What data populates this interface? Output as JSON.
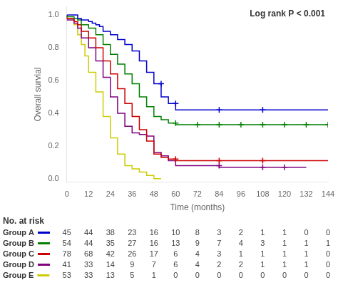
{
  "chart_data": {
    "type": "line",
    "line_style": "step",
    "annotation": "Log rank P < 0.001",
    "xlabel": "Time (months)",
    "ylabel": "Overall survial",
    "xlim": [
      0,
      144
    ],
    "ylim": [
      -0.02,
      1.05
    ],
    "xticks": [
      0,
      12,
      24,
      36,
      48,
      60,
      72,
      84,
      96,
      108,
      120,
      132,
      144
    ],
    "yticks": [
      {
        "value": 0.0,
        "label": "0.0"
      },
      0.2,
      0.4,
      0.6,
      0.8,
      {
        "value": 1.0,
        "label": "1.0"
      }
    ],
    "grid": false,
    "at_risk_label": "No. at risk",
    "at_risk_times": [
      0,
      12,
      24,
      36,
      48,
      60,
      72,
      84,
      96,
      108,
      120,
      132,
      144
    ],
    "series": [
      {
        "name": "Group A",
        "color": "#0000CC",
        "marker": "+",
        "x": [
          0,
          6,
          8,
          12,
          14,
          16,
          18,
          20,
          24,
          28,
          32,
          36,
          40,
          44,
          48,
          52,
          56,
          60,
          72,
          84,
          96,
          108,
          120,
          132,
          144
        ],
        "values": [
          1.0,
          1.0,
          0.98,
          0.97,
          0.96,
          0.95,
          0.94,
          0.93,
          0.9,
          0.88,
          0.85,
          0.82,
          0.78,
          0.72,
          0.65,
          0.58,
          0.5,
          0.46,
          0.42,
          0.42,
          0.42,
          0.42,
          0.42,
          0.42,
          0.42
        ],
        "censor_x": [
          52,
          60,
          84,
          108
        ],
        "censor_values": [
          0.58,
          0.46,
          0.42,
          0.42
        ],
        "at_risk": [
          45,
          44,
          38,
          23,
          16,
          10,
          8,
          3,
          2,
          1,
          1,
          0,
          0
        ]
      },
      {
        "name": "Group B",
        "color": "#008000",
        "marker": "+",
        "x": [
          0,
          4,
          6,
          8,
          12,
          16,
          20,
          24,
          28,
          32,
          36,
          40,
          44,
          48,
          52,
          56,
          60,
          72,
          84,
          96,
          108,
          120,
          132,
          144
        ],
        "values": [
          1.0,
          0.99,
          0.98,
          0.97,
          0.94,
          0.92,
          0.88,
          0.82,
          0.76,
          0.7,
          0.64,
          0.58,
          0.5,
          0.44,
          0.38,
          0.36,
          0.34,
          0.33,
          0.33,
          0.33,
          0.33,
          0.33,
          0.33,
          0.33
        ],
        "censor_x": [
          60,
          72,
          84,
          96,
          108,
          120,
          132,
          144
        ],
        "censor_values": [
          0.34,
          0.33,
          0.33,
          0.33,
          0.33,
          0.33,
          0.33,
          0.33
        ],
        "at_risk": [
          54,
          44,
          35,
          27,
          16,
          13,
          9,
          7,
          4,
          3,
          1,
          1,
          1
        ]
      },
      {
        "name": "Group C",
        "color": "#CC0000",
        "marker": "+",
        "x": [
          0,
          4,
          6,
          8,
          12,
          16,
          20,
          24,
          28,
          32,
          36,
          40,
          44,
          48,
          52,
          56,
          60,
          72,
          84,
          96,
          108,
          120,
          132,
          144
        ],
        "values": [
          1.0,
          0.98,
          0.96,
          0.94,
          0.9,
          0.86,
          0.8,
          0.72,
          0.64,
          0.55,
          0.46,
          0.38,
          0.3,
          0.23,
          0.15,
          0.13,
          0.12,
          0.11,
          0.11,
          0.11,
          0.11,
          0.11,
          0.11,
          0.11
        ],
        "censor_x": [
          60,
          84,
          108
        ],
        "censor_values": [
          0.12,
          0.11,
          0.11
        ],
        "at_risk": [
          78,
          68,
          42,
          26,
          17,
          6,
          4,
          3,
          1,
          1,
          1,
          1,
          0
        ]
      },
      {
        "name": "Group D",
        "color": "#800080",
        "marker": "+",
        "x": [
          0,
          4,
          6,
          8,
          12,
          16,
          20,
          24,
          28,
          32,
          36,
          40,
          44,
          48,
          52,
          56,
          60,
          72,
          84,
          96,
          108,
          120,
          132
        ],
        "values": [
          1.0,
          0.97,
          0.95,
          0.92,
          0.86,
          0.8,
          0.72,
          0.62,
          0.5,
          0.4,
          0.32,
          0.28,
          0.27,
          0.26,
          0.16,
          0.14,
          0.11,
          0.08,
          0.08,
          0.07,
          0.07,
          0.07,
          0.07
        ],
        "censor_x": [
          84,
          108,
          120
        ],
        "censor_values": [
          0.08,
          0.07,
          0.07
        ],
        "at_risk": [
          41,
          33,
          14,
          9,
          7,
          6,
          4,
          2,
          2,
          1,
          1,
          1,
          0
        ]
      },
      {
        "name": "Group E",
        "color": "#CCCC00",
        "marker": "+",
        "x": [
          0,
          4,
          6,
          8,
          10,
          12,
          16,
          20,
          24,
          28,
          32,
          36,
          40,
          44,
          48,
          52
        ],
        "values": [
          1.0,
          0.98,
          0.94,
          0.88,
          0.82,
          0.75,
          0.65,
          0.53,
          0.38,
          0.25,
          0.15,
          0.08,
          0.06,
          0.04,
          0.02,
          0.0
        ],
        "censor_x": [],
        "censor_values": [],
        "at_risk": [
          53,
          33,
          13,
          5,
          1,
          0,
          0,
          0,
          0,
          0,
          0,
          0,
          0
        ]
      }
    ]
  }
}
